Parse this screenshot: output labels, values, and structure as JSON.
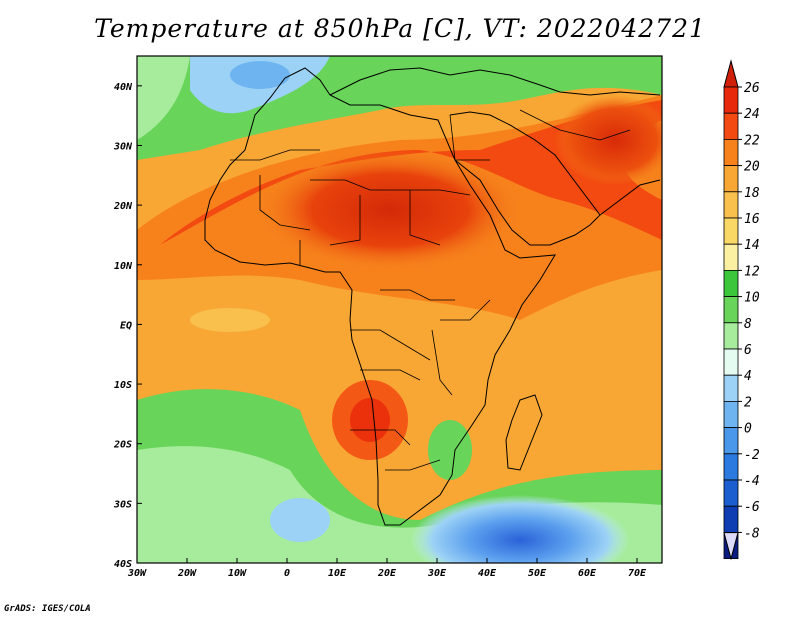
{
  "title": "Temperature at 850hPa [C], VT: 2022042721",
  "credit": "GrADS: IGES/COLA",
  "map": {
    "projection": "lat-lon",
    "lon_range": [
      -30,
      75
    ],
    "lat_range": [
      -40,
      45
    ],
    "lon_ticks": [
      {
        "value": -30,
        "label": "30W"
      },
      {
        "value": -20,
        "label": "20W"
      },
      {
        "value": -10,
        "label": "10W"
      },
      {
        "value": 0,
        "label": "0"
      },
      {
        "value": 10,
        "label": "10E"
      },
      {
        "value": 20,
        "label": "20E"
      },
      {
        "value": 30,
        "label": "30E"
      },
      {
        "value": 40,
        "label": "40E"
      },
      {
        "value": 50,
        "label": "50E"
      },
      {
        "value": 60,
        "label": "60E"
      },
      {
        "value": 70,
        "label": "70E"
      }
    ],
    "lat_ticks": [
      {
        "value": 40,
        "label": "40N"
      },
      {
        "value": 30,
        "label": "30N"
      },
      {
        "value": 20,
        "label": "20N"
      },
      {
        "value": 10,
        "label": "10N"
      },
      {
        "value": 0,
        "label": "EQ"
      },
      {
        "value": -10,
        "label": "10S"
      },
      {
        "value": -20,
        "label": "20S"
      },
      {
        "value": -30,
        "label": "30S"
      },
      {
        "value": -40,
        "label": "40S"
      }
    ]
  },
  "colorbar": {
    "labels": [
      "26",
      "24",
      "22",
      "20",
      "18",
      "16",
      "14",
      "12",
      "10",
      "8",
      "6",
      "4",
      "2",
      "0",
      "-2",
      "-4",
      "-6",
      "-8"
    ],
    "colors": [
      "#e8280a",
      "#f24a10",
      "#f7821c",
      "#f8a634",
      "#f9c04e",
      "#fad866",
      "#fbf0a2",
      "#3cc63c",
      "#68d45a",
      "#a6ec9c",
      "#e4fbf2",
      "#9cd2f6",
      "#6eb4f0",
      "#4a98ea",
      "#2a7ae0",
      "#1a5ed0",
      "#0e3eb2",
      "#0a1c80"
    ],
    "top_color": "#d0200a",
    "bottom_color": "#dcdcfa"
  }
}
